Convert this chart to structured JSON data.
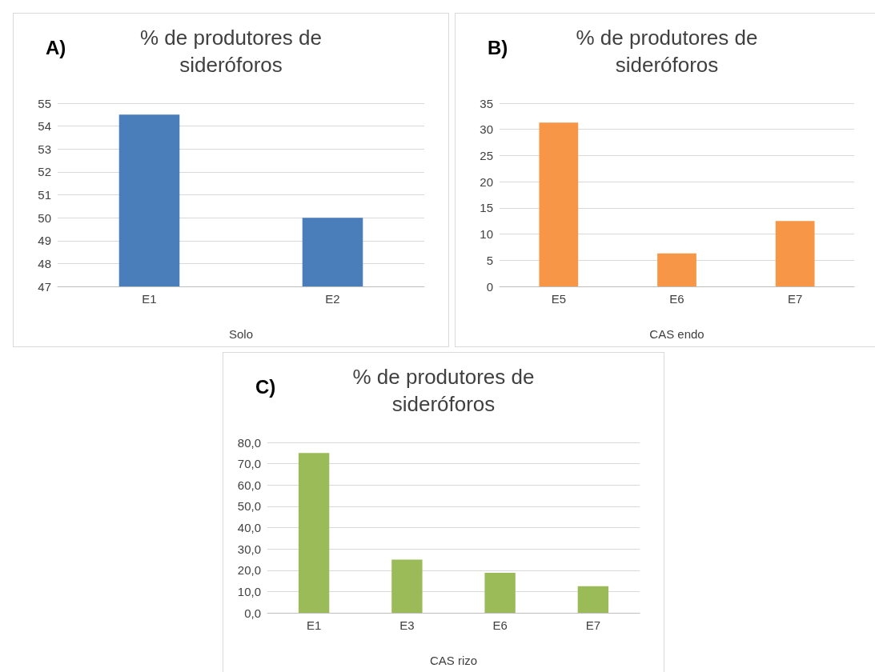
{
  "chart_data": [
    {
      "type": "bar",
      "title": "% de produtores de\nsideróforos",
      "annotations": [
        "A)"
      ],
      "xlabel": "Solo",
      "categories": [
        "E1",
        "E2"
      ],
      "values": [
        54.5,
        50
      ],
      "color": "#4a7ebb",
      "ylim": [
        47,
        55
      ],
      "yticks": [
        47,
        48,
        49,
        50,
        51,
        52,
        53,
        54,
        55
      ],
      "grid": "y"
    },
    {
      "type": "bar",
      "title": "% de produtores de\nsideróforos",
      "annotations": [
        "B)"
      ],
      "xlabel": "CAS endo",
      "categories": [
        "E5",
        "E6",
        "E7"
      ],
      "values": [
        31.3,
        6.3,
        12.5
      ],
      "color": "#f79646",
      "ylim": [
        0,
        35
      ],
      "yticks": [
        0,
        5,
        10,
        15,
        20,
        25,
        30,
        35
      ],
      "grid": "y"
    },
    {
      "type": "bar",
      "title": "% de produtores de\nsideróforos",
      "annotations": [
        "C)"
      ],
      "xlabel": "CAS rizo",
      "categories": [
        "E1",
        "E3",
        "E6",
        "E7"
      ],
      "values": [
        75,
        25,
        18.8,
        12.5
      ],
      "color": "#9bbb59",
      "ylim": [
        0,
        80
      ],
      "yticks": [
        {
          "value": 0,
          "label": "0,0"
        },
        {
          "value": 10,
          "label": "10,0"
        },
        {
          "value": 20,
          "label": "20,0"
        },
        {
          "value": 30,
          "label": "30,0"
        },
        {
          "value": 40,
          "label": "40,0"
        },
        {
          "value": 50,
          "label": "50,0"
        },
        {
          "value": 60,
          "label": "60,0"
        },
        {
          "value": 70,
          "label": "70,0"
        },
        {
          "value": 80,
          "label": "80,0"
        }
      ],
      "grid": "y"
    }
  ]
}
